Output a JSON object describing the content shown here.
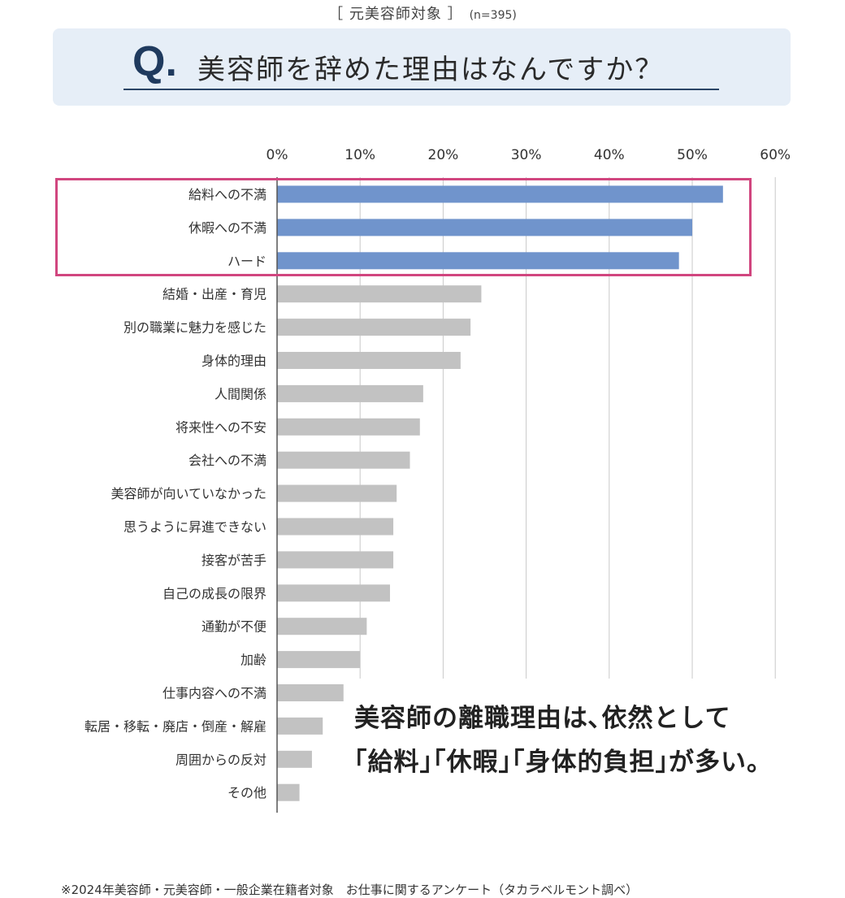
{
  "header": {
    "subtitle": "［ 元美容師対象 ］",
    "sample": "(n=395)",
    "q_mark": "Q.",
    "question": "美容師を辞めた理由はなんですか？"
  },
  "callout": {
    "line1": "美容師の離職理由は､依然として",
    "line2": "｢給料｣｢休暇｣｢身体的負担｣が多い。"
  },
  "footnote": "※2024年美容師・元美容師・一般企業在籍者対象　お仕事に関するアンケート（タカラベルモント調べ）",
  "colors": {
    "highlight_bar": "#7094cc",
    "other_bar": "#c2c2c2",
    "highlight_frame": "#d1467f",
    "question_box": "#e6eef7"
  },
  "chart_data": {
    "type": "bar",
    "orientation": "horizontal",
    "xlim": [
      0,
      60
    ],
    "ticks": [
      "0%",
      "10%",
      "20%",
      "30%",
      "40%",
      "50%",
      "60%"
    ],
    "grid": true,
    "highlighted_count": 3,
    "categories": [
      "給料への不満",
      "休暇への不満",
      "ハード",
      "結婚・出産・育児",
      "別の職業に魅力を感じた",
      "身体的理由",
      "人間関係",
      "将来性への不安",
      "会社への不満",
      "美容師が向いていなかった",
      "思うように昇進できない",
      "接客が苦手",
      "自己の成長の限界",
      "通勤が不便",
      "加齢",
      "仕事内容への不満",
      "転居・移転・廃店・倒産・解雇",
      "周囲からの反対",
      "その他"
    ],
    "values": [
      53.7,
      50.0,
      48.4,
      24.6,
      23.3,
      22.1,
      17.6,
      17.2,
      16.0,
      14.4,
      14.0,
      14.0,
      13.6,
      10.8,
      10.0,
      8.0,
      5.5,
      4.2,
      2.7
    ]
  }
}
